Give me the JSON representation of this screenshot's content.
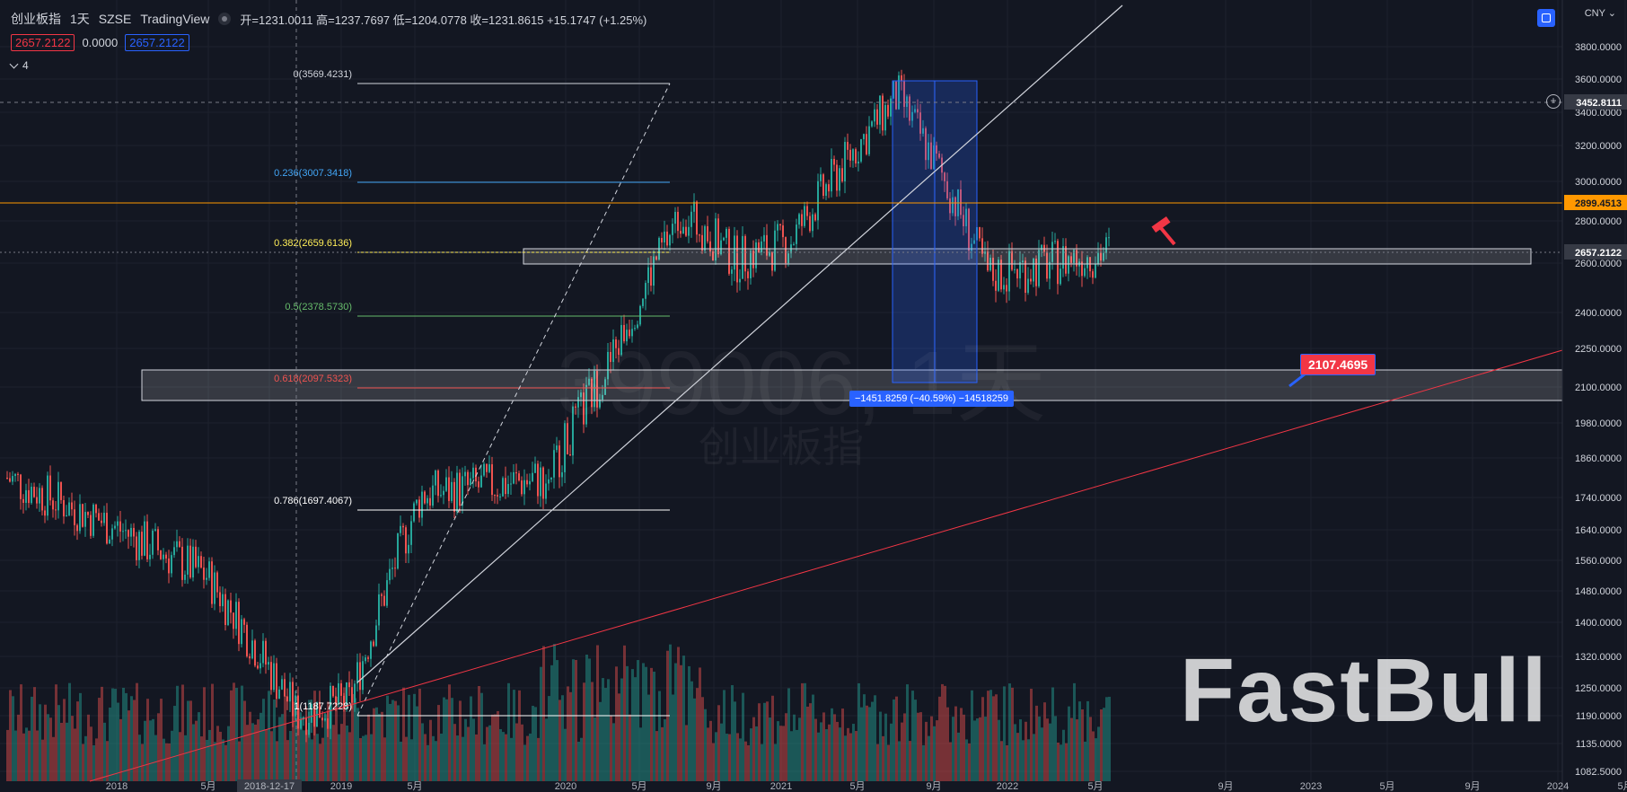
{
  "header": {
    "symbol": "创业板指",
    "interval": "1天",
    "exchange": "SZSE",
    "source": "TradingView",
    "ohlc": "开=1231.0011 高=1237.7697 低=1204.0778 收=1231.8615 +15.1747 (+1.25%)"
  },
  "indicators": {
    "value_red": "2657.2122",
    "value_zero": "0.0000",
    "value_blue": "2657.2122",
    "collapsed_count": "4"
  },
  "currency": "CNY",
  "price_axis": {
    "labels": [
      "3800.0000",
      "3600.0000",
      "3400.0000",
      "3200.0000",
      "3000.0000",
      "2800.0000",
      "2600.0000",
      "2400.0000",
      "2250.0000",
      "2100.0000",
      "1980.0000",
      "1860.0000",
      "1740.0000",
      "1640.0000",
      "1560.0000",
      "1480.0000",
      "1400.0000",
      "1320.0000",
      "1250.0000",
      "1190.0000",
      "1135.0000",
      "1082.5000"
    ],
    "crosshair_price": "3452.8111",
    "orange_line_price": "2899.4513",
    "last_price": "2657.2122"
  },
  "time_axis": {
    "labels": [
      "2018",
      "5月",
      "2018-12-17",
      "2019",
      "5月",
      "2020",
      "5月",
      "9月",
      "2021",
      "5月",
      "9月",
      "2022",
      "5月",
      "9月",
      "2023",
      "5月",
      "9月",
      "2024",
      "5月"
    ]
  },
  "fib_levels": [
    {
      "label": "0(3569.4231)",
      "color": "#d1d4dc"
    },
    {
      "label": "0.236(3007.3418)",
      "color": "#42a5f5"
    },
    {
      "label": "0.382(2659.6136)",
      "color": "#ffee58"
    },
    {
      "label": "0.5(2378.5730)",
      "color": "#66bb6a"
    },
    {
      "label": "0.618(2097.5323)",
      "color": "#ef5350"
    },
    {
      "label": "0.786(1697.4067)",
      "color": "#ffffff"
    },
    {
      "label": "1(1187.7228)",
      "color": "#ffffff"
    }
  ],
  "measure_label": "−1451.8259 (−40.59%) −14518259",
  "price_label": "2107.4695",
  "watermark": {
    "symbol_line": "399006, 1天",
    "name_line": "创业板指"
  },
  "brand": "FastBull",
  "colors": {
    "up": "#26a69a",
    "down": "#ef5350",
    "accent": "#2962ff",
    "orange": "#ff9800",
    "background": "#131722"
  },
  "chart_data": {
    "type": "candlestick",
    "title": "",
    "xlabel": "",
    "ylabel": "",
    "ylim": [
      1082.5,
      3900
    ],
    "y_scale": "log",
    "x": [
      "2018",
      "5月",
      "2018-12-17",
      "2019",
      "5月",
      "2020",
      "5月",
      "9月",
      "2021",
      "5月",
      "9月",
      "2022",
      "5月"
    ],
    "close": [
      1650,
      1500,
      1200,
      1230,
      1600,
      1850,
      2150,
      2720,
      2650,
      2700,
      3450,
      2650,
      2657.2122
    ]
  }
}
